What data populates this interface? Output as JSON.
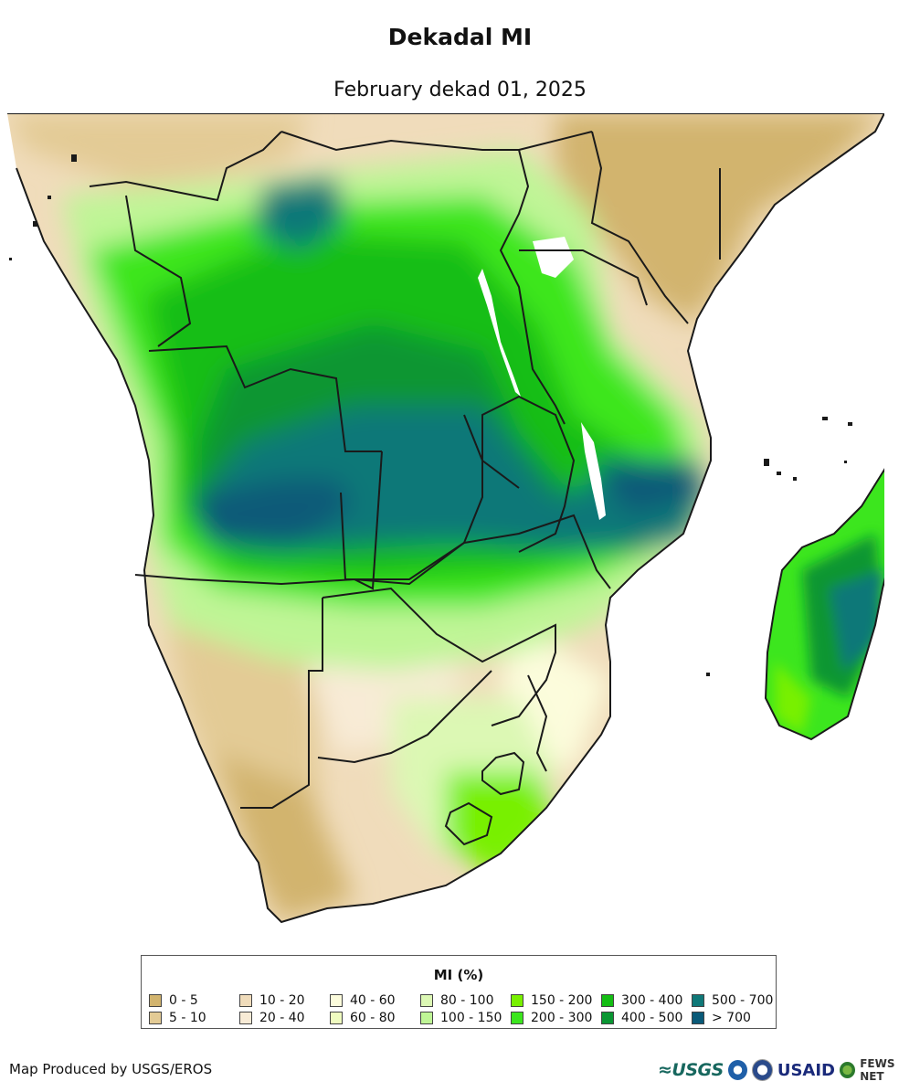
{
  "header": {
    "title": "Dekadal MI",
    "subtitle": "February dekad 01, 2025"
  },
  "legend": {
    "title": "MI (%)",
    "items": [
      {
        "label": "0 - 5",
        "color": "#d2b46e"
      },
      {
        "label": "5 - 10",
        "color": "#e3cb95"
      },
      {
        "label": "10 - 20",
        "color": "#f0dcbb"
      },
      {
        "label": "20 - 40",
        "color": "#f8ebd6"
      },
      {
        "label": "40 - 60",
        "color": "#fcfcdc"
      },
      {
        "label": "60 - 80",
        "color": "#f0fcc0"
      },
      {
        "label": "80 - 100",
        "color": "#dcf8b4"
      },
      {
        "label": "100 - 150",
        "color": "#bff596"
      },
      {
        "label": "150 - 200",
        "color": "#78f000"
      },
      {
        "label": "200 - 300",
        "color": "#3ce61e"
      },
      {
        "label": "300 - 400",
        "color": "#14be14"
      },
      {
        "label": "400 - 500",
        "color": "#0a9632"
      },
      {
        "label": "500 - 700",
        "color": "#0f7878"
      },
      {
        "label": "> 700",
        "color": "#0a5a78"
      }
    ]
  },
  "footer": {
    "credit": "Map Produced by USGS/EROS",
    "logos": {
      "usgs": "≈USGS",
      "usaid": "USAID",
      "fews": "FEWS NET"
    }
  },
  "colors": {
    "ocean": "#ffffff",
    "border": "#1a1a1a"
  }
}
